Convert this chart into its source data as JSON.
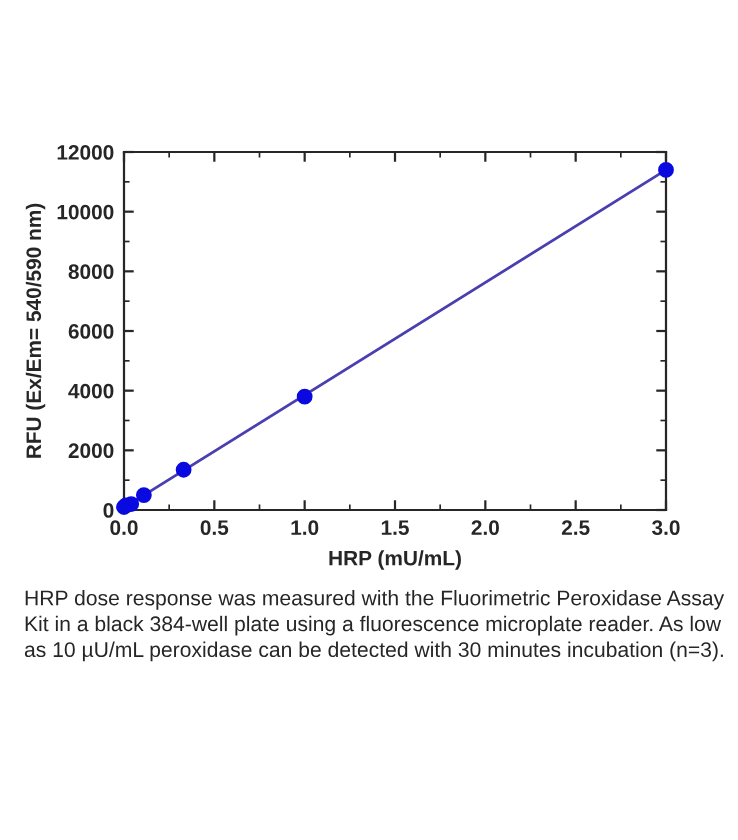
{
  "chart_data": {
    "type": "scatter",
    "xlabel": "HRP (mU/mL)",
    "ylabel": "RFU (Ex/Em= 540/590 nm)",
    "x": [
      0,
      0.01,
      0.04,
      0.11,
      0.33,
      1,
      3
    ],
    "series": [
      {
        "color": "#0a0ae0",
        "values": [
          100,
          150,
          200,
          500,
          1350,
          3800,
          11400
        ],
        "marker": "circle"
      },
      {
        "type": "line",
        "color": "#4a3fb0",
        "x": [
          0,
          3
        ],
        "values": [
          80,
          11400
        ],
        "marker": "none"
      }
    ],
    "xlim": [
      0,
      3
    ],
    "xticks": [
      {
        "value": 0,
        "label": "0.0"
      },
      0.5,
      {
        "value": 1,
        "label": "1.0"
      },
      1.5,
      {
        "value": 2,
        "label": "2.0"
      },
      2.5,
      {
        "value": 3,
        "label": "3.0"
      }
    ],
    "ylim": [
      0,
      12000
    ],
    "yticks": [
      0,
      2000,
      4000,
      6000,
      8000,
      10000,
      12000
    ],
    "grid": false,
    "legend": false,
    "annotations": [
      "HRP dose response was measured with the Fluorimetric Peroxidase Assay Kit in a black 384-well plate using a fluorescence microplate reader. As low as 10 µU/mL peroxidase can be detected with 30 minutes incubation (n=3)."
    ]
  }
}
